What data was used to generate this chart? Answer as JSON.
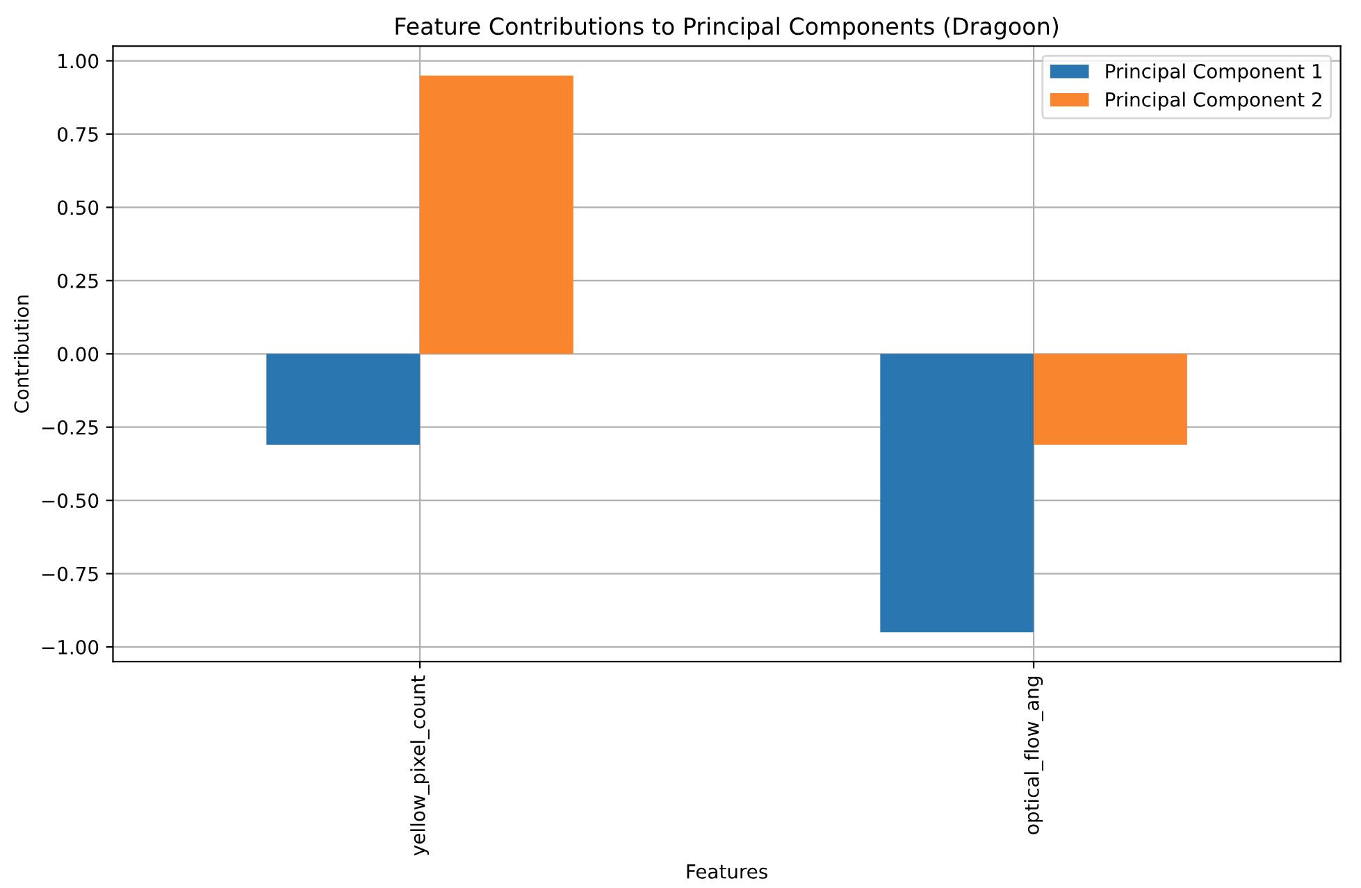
{
  "chart_data": {
    "type": "bar",
    "title": "Feature Contributions to Principal Components (Dragoon)",
    "xlabel": "Features",
    "ylabel": "Contribution",
    "categories": [
      "yellow_pixel_count",
      "optical_flow_ang"
    ],
    "series": [
      {
        "name": "Principal Component 1",
        "color": "#2a76b0",
        "values": [
          -0.31,
          -0.95
        ]
      },
      {
        "name": "Principal Component 2",
        "color": "#f9852f",
        "values": [
          0.95,
          -0.31
        ]
      }
    ],
    "ylim": [
      -1.05,
      1.05
    ],
    "yticks": [
      {
        "value": -1.0,
        "label": "−1.00"
      },
      {
        "value": -0.75,
        "label": "−0.75"
      },
      {
        "value": -0.5,
        "label": "−0.50"
      },
      {
        "value": -0.25,
        "label": "−0.25"
      },
      {
        "value": 0,
        "label": "0.00"
      },
      {
        "value": 0.25,
        "label": "0.25"
      },
      {
        "value": 0.5,
        "label": "0.50"
      },
      {
        "value": 0.75,
        "label": "0.75"
      },
      {
        "value": 1.0,
        "label": "1.00"
      }
    ],
    "grid": true,
    "legend": "top right"
  }
}
